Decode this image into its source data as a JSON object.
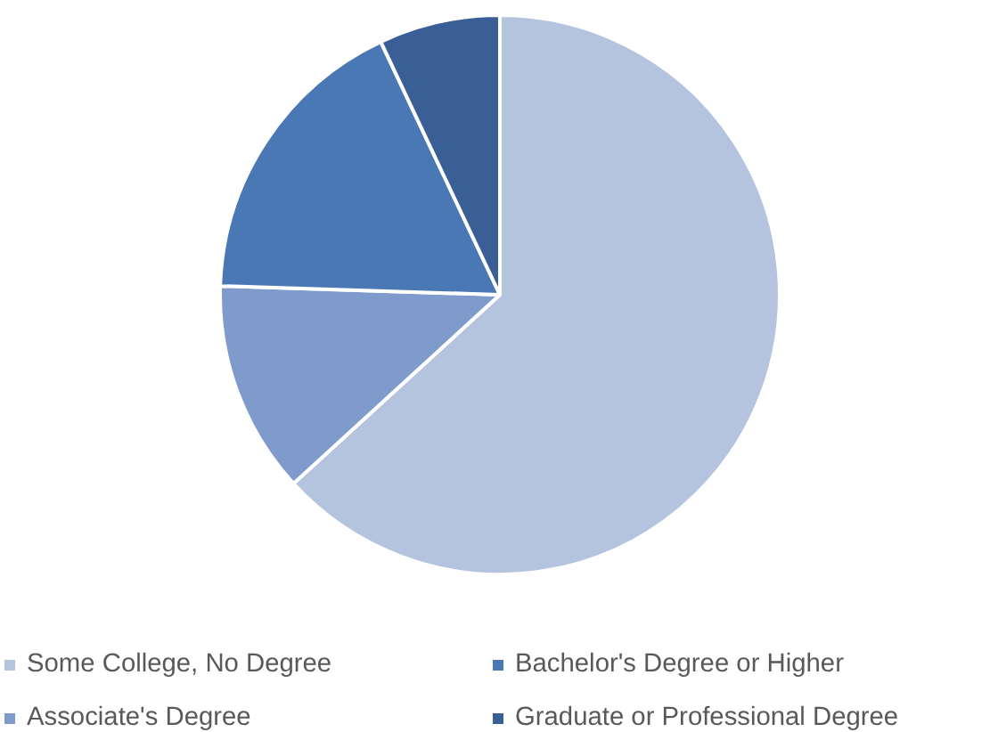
{
  "chart_data": {
    "type": "pie",
    "categories": [
      "Some College, No Degree",
      "Associate's Degree",
      "Bachelor's Degree or Higher",
      "Graduate or Professional Degree"
    ],
    "values": [
      63.2,
      12.3,
      17.5,
      7.0
    ],
    "colors": [
      "#b4c3de",
      "#7f9bcb",
      "#4a78b5",
      "#3a5f96"
    ],
    "legend": "bottom"
  }
}
